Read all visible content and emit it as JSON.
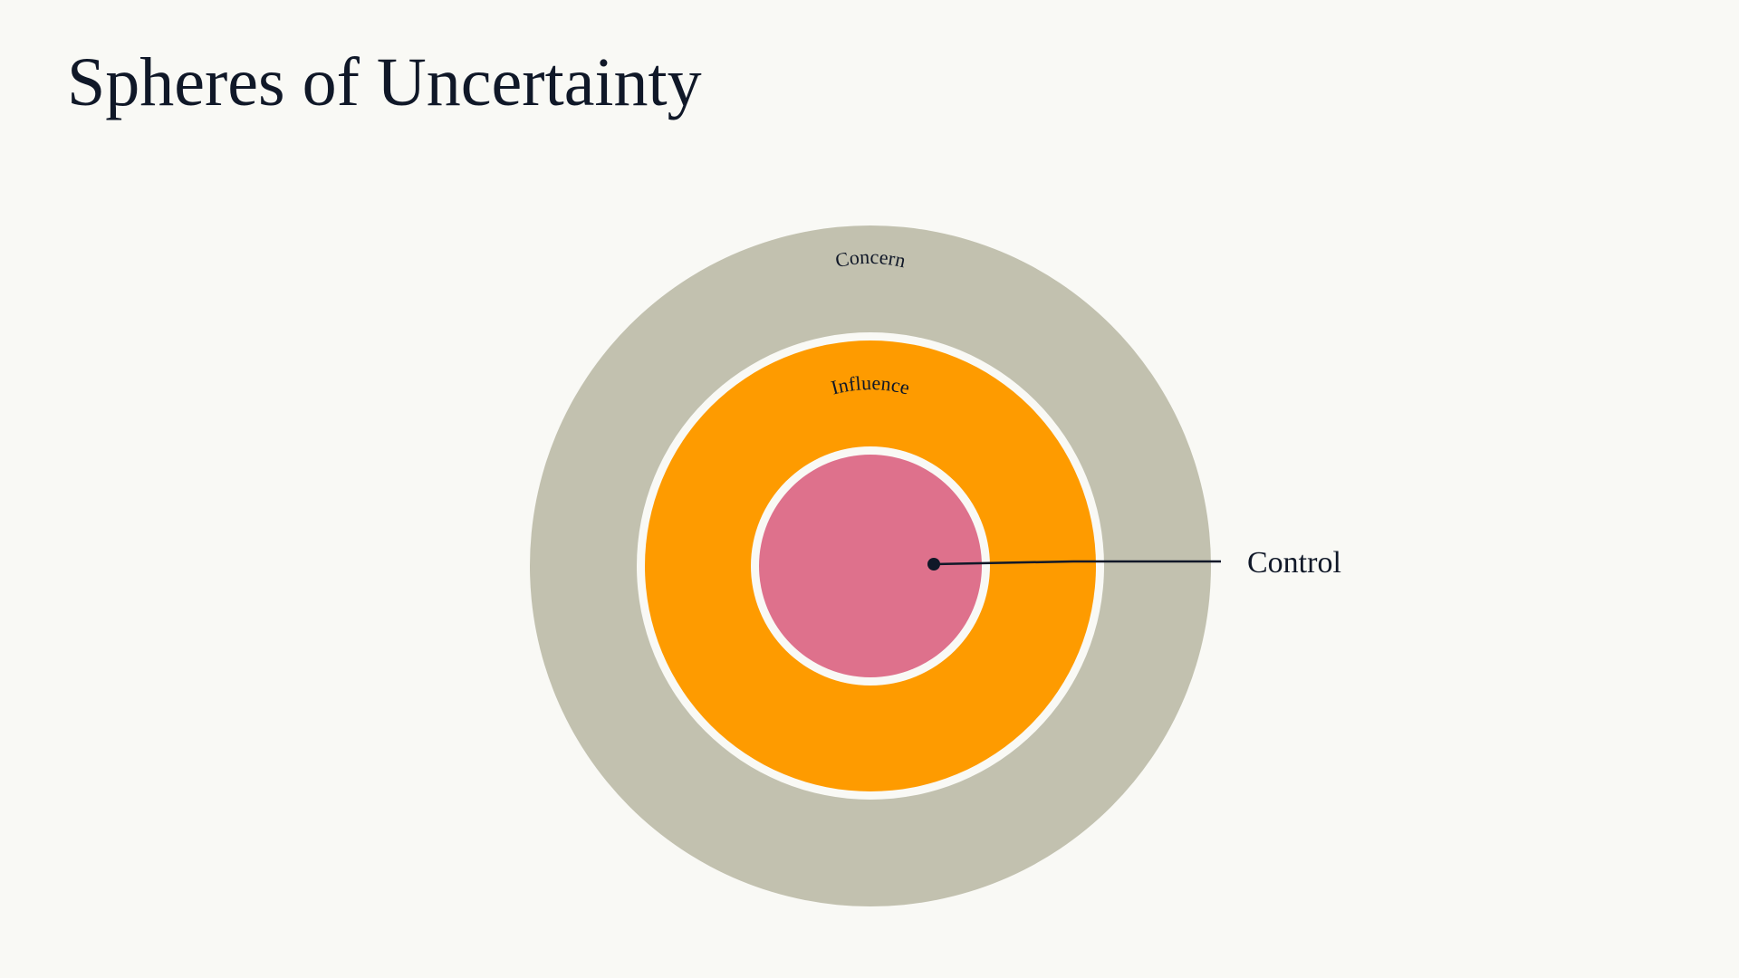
{
  "slide": {
    "title": "Spheres of Uncertainty"
  },
  "diagram": {
    "rings": [
      {
        "key": "concern",
        "label": "Concern",
        "color": "#c2c1af"
      },
      {
        "key": "influence",
        "label": "Influence",
        "color": "#fe9b00"
      },
      {
        "key": "control",
        "label": "Control",
        "color": "#de718c"
      }
    ],
    "gap_color": "#f9f9f5",
    "line_color": "#101828"
  }
}
